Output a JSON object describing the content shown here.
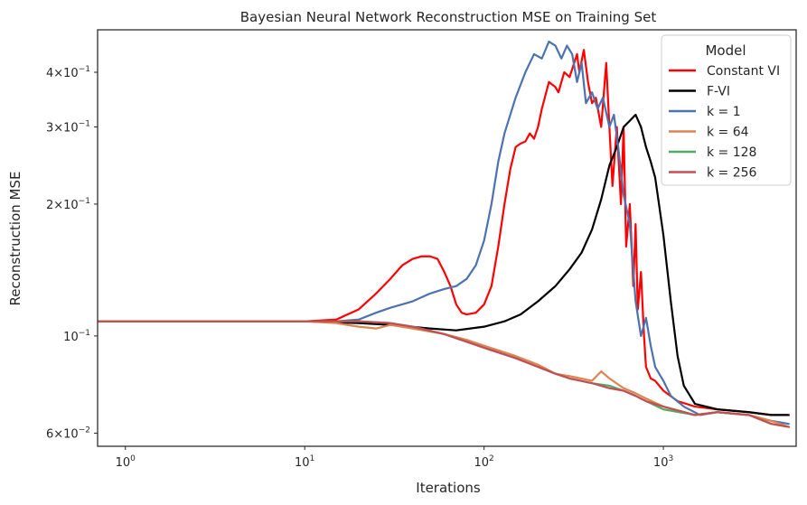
{
  "chart_data": {
    "type": "line",
    "title": "Bayesian Neural Network Reconstruction MSE on Training Set",
    "xlabel": "Iterations",
    "ylabel": "Reconstruction MSE",
    "xscale": "log",
    "yscale": "log",
    "xlim": [
      0.7,
      5500
    ],
    "ylim": [
      0.056,
      0.5
    ],
    "grid": false,
    "legend": {
      "title": "Model",
      "placement": "top-right"
    },
    "x_ticks": [
      {
        "value": 1,
        "base": "10",
        "exp": "0"
      },
      {
        "value": 10,
        "base": "10",
        "exp": "1"
      },
      {
        "value": 100,
        "base": "10",
        "exp": "2"
      },
      {
        "value": 1000,
        "base": "10",
        "exp": "3"
      }
    ],
    "y_ticks": [
      {
        "value": 0.06,
        "mant": "6",
        "exp": "−2"
      },
      {
        "value": 0.1,
        "mant": "",
        "exp": "−1"
      },
      {
        "value": 0.2,
        "mant": "2",
        "exp": "−1"
      },
      {
        "value": 0.3,
        "mant": "3",
        "exp": "−1"
      },
      {
        "value": 0.4,
        "mant": "4",
        "exp": "−1"
      }
    ],
    "series": [
      {
        "name": "Constant VI",
        "color": "#ff0000",
        "points": [
          [
            0.7,
            0.108
          ],
          [
            5,
            0.108
          ],
          [
            10,
            0.108
          ],
          [
            15,
            0.109
          ],
          [
            20,
            0.115
          ],
          [
            25,
            0.125
          ],
          [
            30,
            0.135
          ],
          [
            35,
            0.145
          ],
          [
            40,
            0.15
          ],
          [
            45,
            0.152
          ],
          [
            50,
            0.152
          ],
          [
            55,
            0.15
          ],
          [
            60,
            0.14
          ],
          [
            65,
            0.13
          ],
          [
            70,
            0.118
          ],
          [
            75,
            0.113
          ],
          [
            80,
            0.112
          ],
          [
            90,
            0.113
          ],
          [
            100,
            0.118
          ],
          [
            110,
            0.13
          ],
          [
            120,
            0.16
          ],
          [
            130,
            0.2
          ],
          [
            140,
            0.24
          ],
          [
            150,
            0.27
          ],
          [
            160,
            0.275
          ],
          [
            170,
            0.278
          ],
          [
            180,
            0.29
          ],
          [
            190,
            0.282
          ],
          [
            200,
            0.3
          ],
          [
            210,
            0.33
          ],
          [
            230,
            0.38
          ],
          [
            250,
            0.37
          ],
          [
            260,
            0.36
          ],
          [
            280,
            0.4
          ],
          [
            300,
            0.39
          ],
          [
            330,
            0.44
          ],
          [
            340,
            0.4
          ],
          [
            360,
            0.45
          ],
          [
            380,
            0.38
          ],
          [
            400,
            0.34
          ],
          [
            420,
            0.35
          ],
          [
            450,
            0.3
          ],
          [
            480,
            0.42
          ],
          [
            500,
            0.3
          ],
          [
            520,
            0.22
          ],
          [
            550,
            0.3
          ],
          [
            580,
            0.2
          ],
          [
            600,
            0.3
          ],
          [
            620,
            0.16
          ],
          [
            650,
            0.2
          ],
          [
            680,
            0.13
          ],
          [
            700,
            0.18
          ],
          [
            720,
            0.115
          ],
          [
            750,
            0.14
          ],
          [
            780,
            0.1
          ],
          [
            800,
            0.085
          ],
          [
            850,
            0.08
          ],
          [
            900,
            0.079
          ],
          [
            1000,
            0.075
          ],
          [
            1200,
            0.071
          ],
          [
            1500,
            0.069
          ],
          [
            2000,
            0.068
          ],
          [
            3000,
            0.067
          ],
          [
            4000,
            0.066
          ],
          [
            5000,
            0.066
          ]
        ]
      },
      {
        "name": "F-VI",
        "color": "#000000",
        "points": [
          [
            0.7,
            0.108
          ],
          [
            10,
            0.108
          ],
          [
            20,
            0.107
          ],
          [
            30,
            0.106
          ],
          [
            50,
            0.104
          ],
          [
            70,
            0.103
          ],
          [
            100,
            0.105
          ],
          [
            130,
            0.108
          ],
          [
            160,
            0.112
          ],
          [
            200,
            0.12
          ],
          [
            250,
            0.13
          ],
          [
            300,
            0.142
          ],
          [
            350,
            0.155
          ],
          [
            400,
            0.175
          ],
          [
            450,
            0.205
          ],
          [
            500,
            0.245
          ],
          [
            550,
            0.27
          ],
          [
            600,
            0.3
          ],
          [
            650,
            0.31
          ],
          [
            700,
            0.32
          ],
          [
            750,
            0.3
          ],
          [
            800,
            0.27
          ],
          [
            850,
            0.25
          ],
          [
            900,
            0.23
          ],
          [
            1000,
            0.17
          ],
          [
            1100,
            0.12
          ],
          [
            1200,
            0.09
          ],
          [
            1300,
            0.077
          ],
          [
            1500,
            0.07
          ],
          [
            2000,
            0.068
          ],
          [
            3000,
            0.067
          ],
          [
            4000,
            0.066
          ],
          [
            5000,
            0.066
          ]
        ]
      },
      {
        "name": "k = 1",
        "color": "#4c72b0",
        "points": [
          [
            0.7,
            0.108
          ],
          [
            10,
            0.108
          ],
          [
            15,
            0.108
          ],
          [
            20,
            0.109
          ],
          [
            25,
            0.113
          ],
          [
            30,
            0.116
          ],
          [
            40,
            0.12
          ],
          [
            50,
            0.125
          ],
          [
            60,
            0.128
          ],
          [
            70,
            0.13
          ],
          [
            80,
            0.135
          ],
          [
            90,
            0.145
          ],
          [
            100,
            0.165
          ],
          [
            110,
            0.2
          ],
          [
            120,
            0.25
          ],
          [
            130,
            0.29
          ],
          [
            150,
            0.35
          ],
          [
            170,
            0.4
          ],
          [
            190,
            0.44
          ],
          [
            210,
            0.43
          ],
          [
            230,
            0.47
          ],
          [
            250,
            0.46
          ],
          [
            270,
            0.43
          ],
          [
            290,
            0.46
          ],
          [
            310,
            0.44
          ],
          [
            330,
            0.38
          ],
          [
            350,
            0.42
          ],
          [
            370,
            0.34
          ],
          [
            400,
            0.36
          ],
          [
            430,
            0.33
          ],
          [
            460,
            0.35
          ],
          [
            500,
            0.3
          ],
          [
            530,
            0.32
          ],
          [
            560,
            0.27
          ],
          [
            600,
            0.21
          ],
          [
            650,
            0.18
          ],
          [
            700,
            0.12
          ],
          [
            750,
            0.1
          ],
          [
            800,
            0.11
          ],
          [
            850,
            0.095
          ],
          [
            900,
            0.085
          ],
          [
            1000,
            0.079
          ],
          [
            1100,
            0.073
          ],
          [
            1300,
            0.069
          ],
          [
            1600,
            0.066
          ],
          [
            2000,
            0.067
          ],
          [
            3000,
            0.066
          ],
          [
            4000,
            0.064
          ],
          [
            5000,
            0.063
          ]
        ]
      },
      {
        "name": "k = 64",
        "color": "#dd8452",
        "points": [
          [
            0.7,
            0.108
          ],
          [
            10,
            0.108
          ],
          [
            15,
            0.107
          ],
          [
            20,
            0.105
          ],
          [
            25,
            0.104
          ],
          [
            30,
            0.106
          ],
          [
            40,
            0.104
          ],
          [
            60,
            0.101
          ],
          [
            80,
            0.098
          ],
          [
            100,
            0.095
          ],
          [
            150,
            0.09
          ],
          [
            200,
            0.086
          ],
          [
            250,
            0.082
          ],
          [
            300,
            0.081
          ],
          [
            400,
            0.079
          ],
          [
            450,
            0.083
          ],
          [
            500,
            0.08
          ],
          [
            600,
            0.076
          ],
          [
            700,
            0.074
          ],
          [
            800,
            0.072
          ],
          [
            1000,
            0.069
          ],
          [
            1500,
            0.066
          ],
          [
            2000,
            0.067
          ],
          [
            3000,
            0.066
          ],
          [
            4000,
            0.064
          ],
          [
            5000,
            0.062
          ]
        ]
      },
      {
        "name": "k = 128",
        "color": "#55a868",
        "points": [
          [
            0.7,
            0.108
          ],
          [
            10,
            0.108
          ],
          [
            20,
            0.108
          ],
          [
            30,
            0.107
          ],
          [
            40,
            0.105
          ],
          [
            60,
            0.101
          ],
          [
            80,
            0.097
          ],
          [
            100,
            0.094
          ],
          [
            150,
            0.089
          ],
          [
            200,
            0.085
          ],
          [
            250,
            0.082
          ],
          [
            300,
            0.08
          ],
          [
            400,
            0.078
          ],
          [
            500,
            0.077
          ],
          [
            600,
            0.075
          ],
          [
            700,
            0.073
          ],
          [
            800,
            0.071
          ],
          [
            1000,
            0.068
          ],
          [
            1500,
            0.066
          ],
          [
            2000,
            0.067
          ],
          [
            3000,
            0.066
          ],
          [
            4000,
            0.063
          ],
          [
            5000,
            0.062
          ]
        ]
      },
      {
        "name": "k = 256",
        "color": "#c44e52",
        "points": [
          [
            0.7,
            0.108
          ],
          [
            10,
            0.108
          ],
          [
            20,
            0.108
          ],
          [
            30,
            0.107
          ],
          [
            40,
            0.105
          ],
          [
            60,
            0.101
          ],
          [
            80,
            0.097
          ],
          [
            100,
            0.094
          ],
          [
            150,
            0.089
          ],
          [
            200,
            0.085
          ],
          [
            250,
            0.082
          ],
          [
            300,
            0.08
          ],
          [
            400,
            0.078
          ],
          [
            500,
            0.076
          ],
          [
            600,
            0.075
          ],
          [
            700,
            0.073
          ],
          [
            800,
            0.071
          ],
          [
            1000,
            0.069
          ],
          [
            1500,
            0.066
          ],
          [
            2000,
            0.067
          ],
          [
            3000,
            0.066
          ],
          [
            4000,
            0.063
          ],
          [
            5000,
            0.062
          ]
        ]
      }
    ]
  }
}
